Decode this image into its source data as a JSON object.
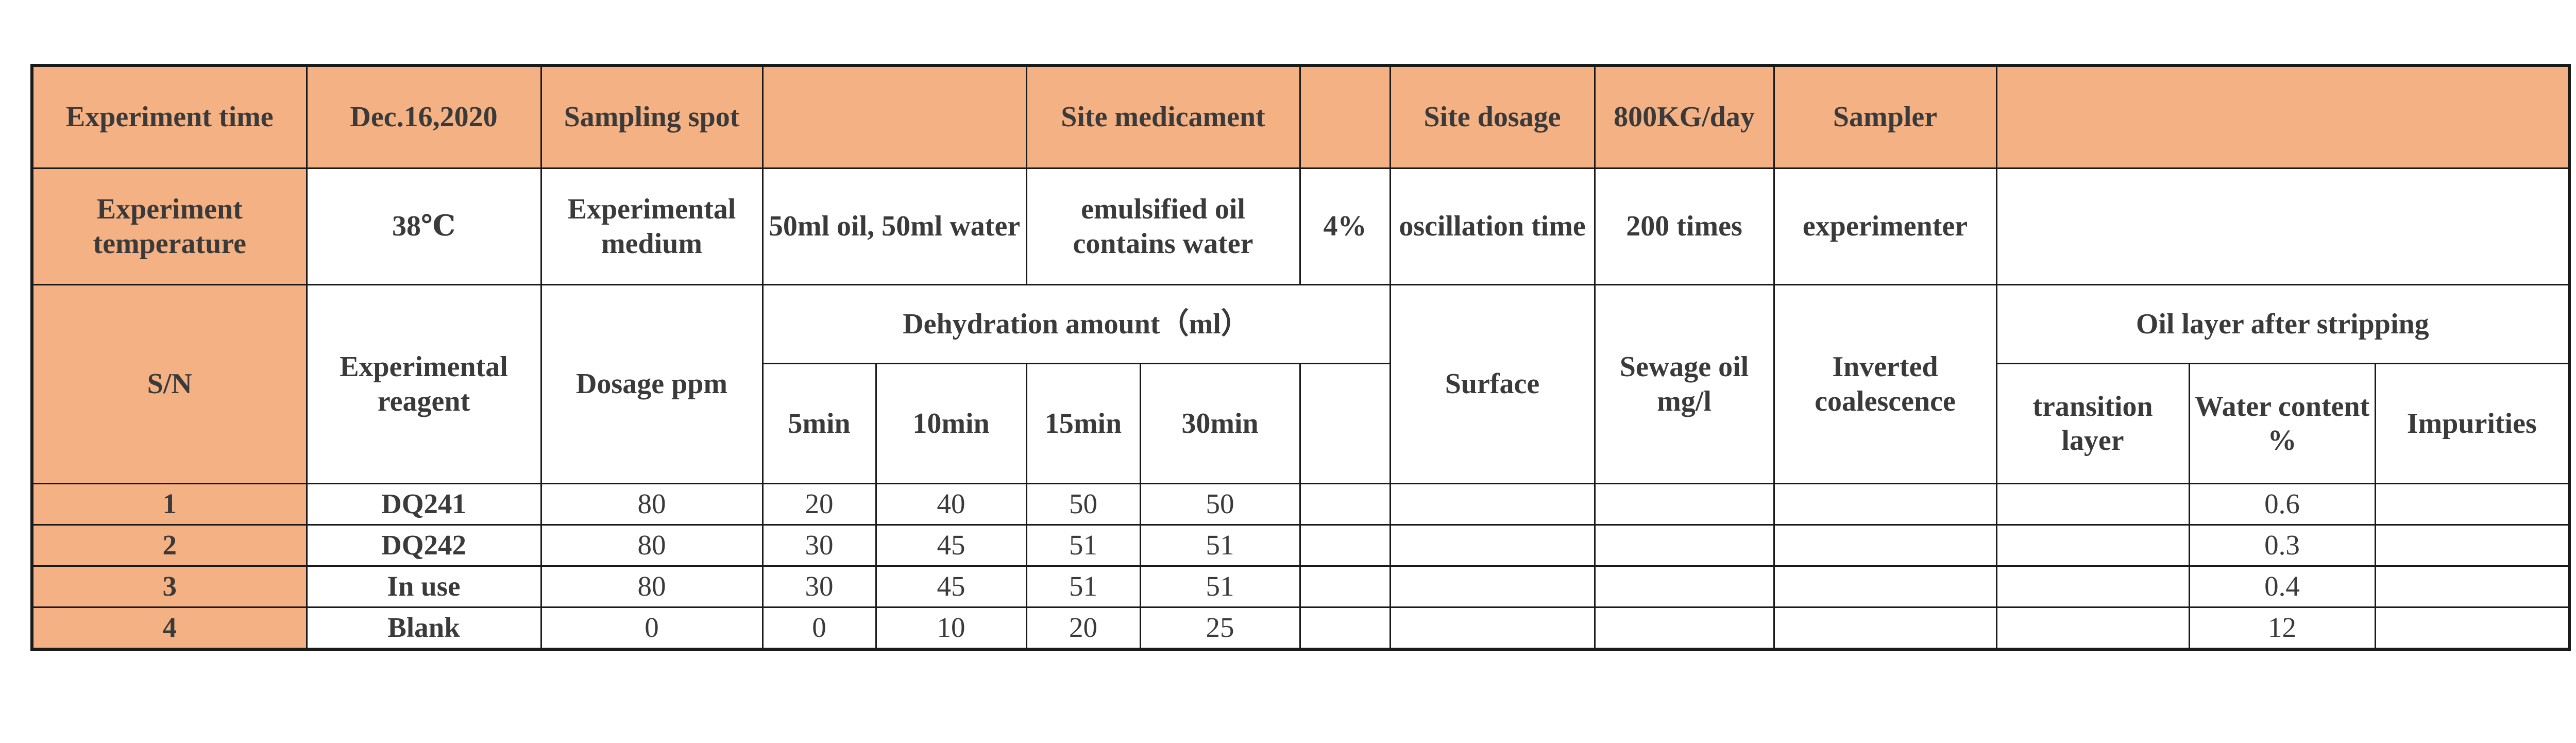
{
  "header": {
    "row1": {
      "experiment_time_label": "Experiment time",
      "experiment_time_value": "Dec.16,2020",
      "sampling_spot_label": "Sampling spot",
      "sampling_spot_value": "",
      "site_medicament_label": "Site medicament",
      "site_medicament_value": "",
      "site_dosage_label": "Site dosage",
      "site_dosage_value": "800KG/day",
      "sampler_label": "Sampler",
      "sampler_value": ""
    },
    "row2": {
      "experiment_temperature_label": "Experiment temperature",
      "experiment_temperature_value": "38℃",
      "experimental_medium_label": "Experimental medium",
      "experimental_medium_value": "50ml oil, 50ml water",
      "medium_type": "emulsified oil contains water",
      "medium_percent": "4%",
      "oscillation_time_label": "oscillation time",
      "oscillation_time_value": "200 times",
      "experimenter_label": "experimenter",
      "experimenter_value": ""
    }
  },
  "columns": {
    "sn": "S/N",
    "reagent": "Experimental reagent",
    "dosage": "Dosage ppm",
    "dehydration_group": "Dehydration amount（ml）",
    "dehydration_times": [
      "5min",
      "10min",
      "15min",
      "30min",
      ""
    ],
    "surface": "Surface",
    "sewage_oil": "Sewage oil mg/l",
    "inverted": "Inverted coalescence",
    "oil_layer_group": "Oil layer after stripping",
    "transition_layer": "transition layer",
    "water_content": "Water content %",
    "impurities": "Impurities"
  },
  "rows": [
    {
      "sn": "1",
      "reagent": "DQ241",
      "dosage": "80",
      "d5": "20",
      "d10": "40",
      "d15": "50",
      "d30": "50",
      "water_content": "0.6"
    },
    {
      "sn": "2",
      "reagent": "DQ242",
      "dosage": "80",
      "d5": "30",
      "d10": "45",
      "d15": "51",
      "d30": "51",
      "water_content": "0.3"
    },
    {
      "sn": "3",
      "reagent": "In use",
      "dosage": "80",
      "d5": "30",
      "d10": "45",
      "d15": "51",
      "d30": "51",
      "water_content": "0.4"
    },
    {
      "sn": "4",
      "reagent": "Blank",
      "dosage": "0",
      "d5": "0",
      "d10": "10",
      "d15": "20",
      "d30": "25",
      "water_content": "12"
    }
  ],
  "colors": {
    "header_fill": "#f4b183",
    "border": "#1a1a1a",
    "text": "#3a3a3a"
  }
}
